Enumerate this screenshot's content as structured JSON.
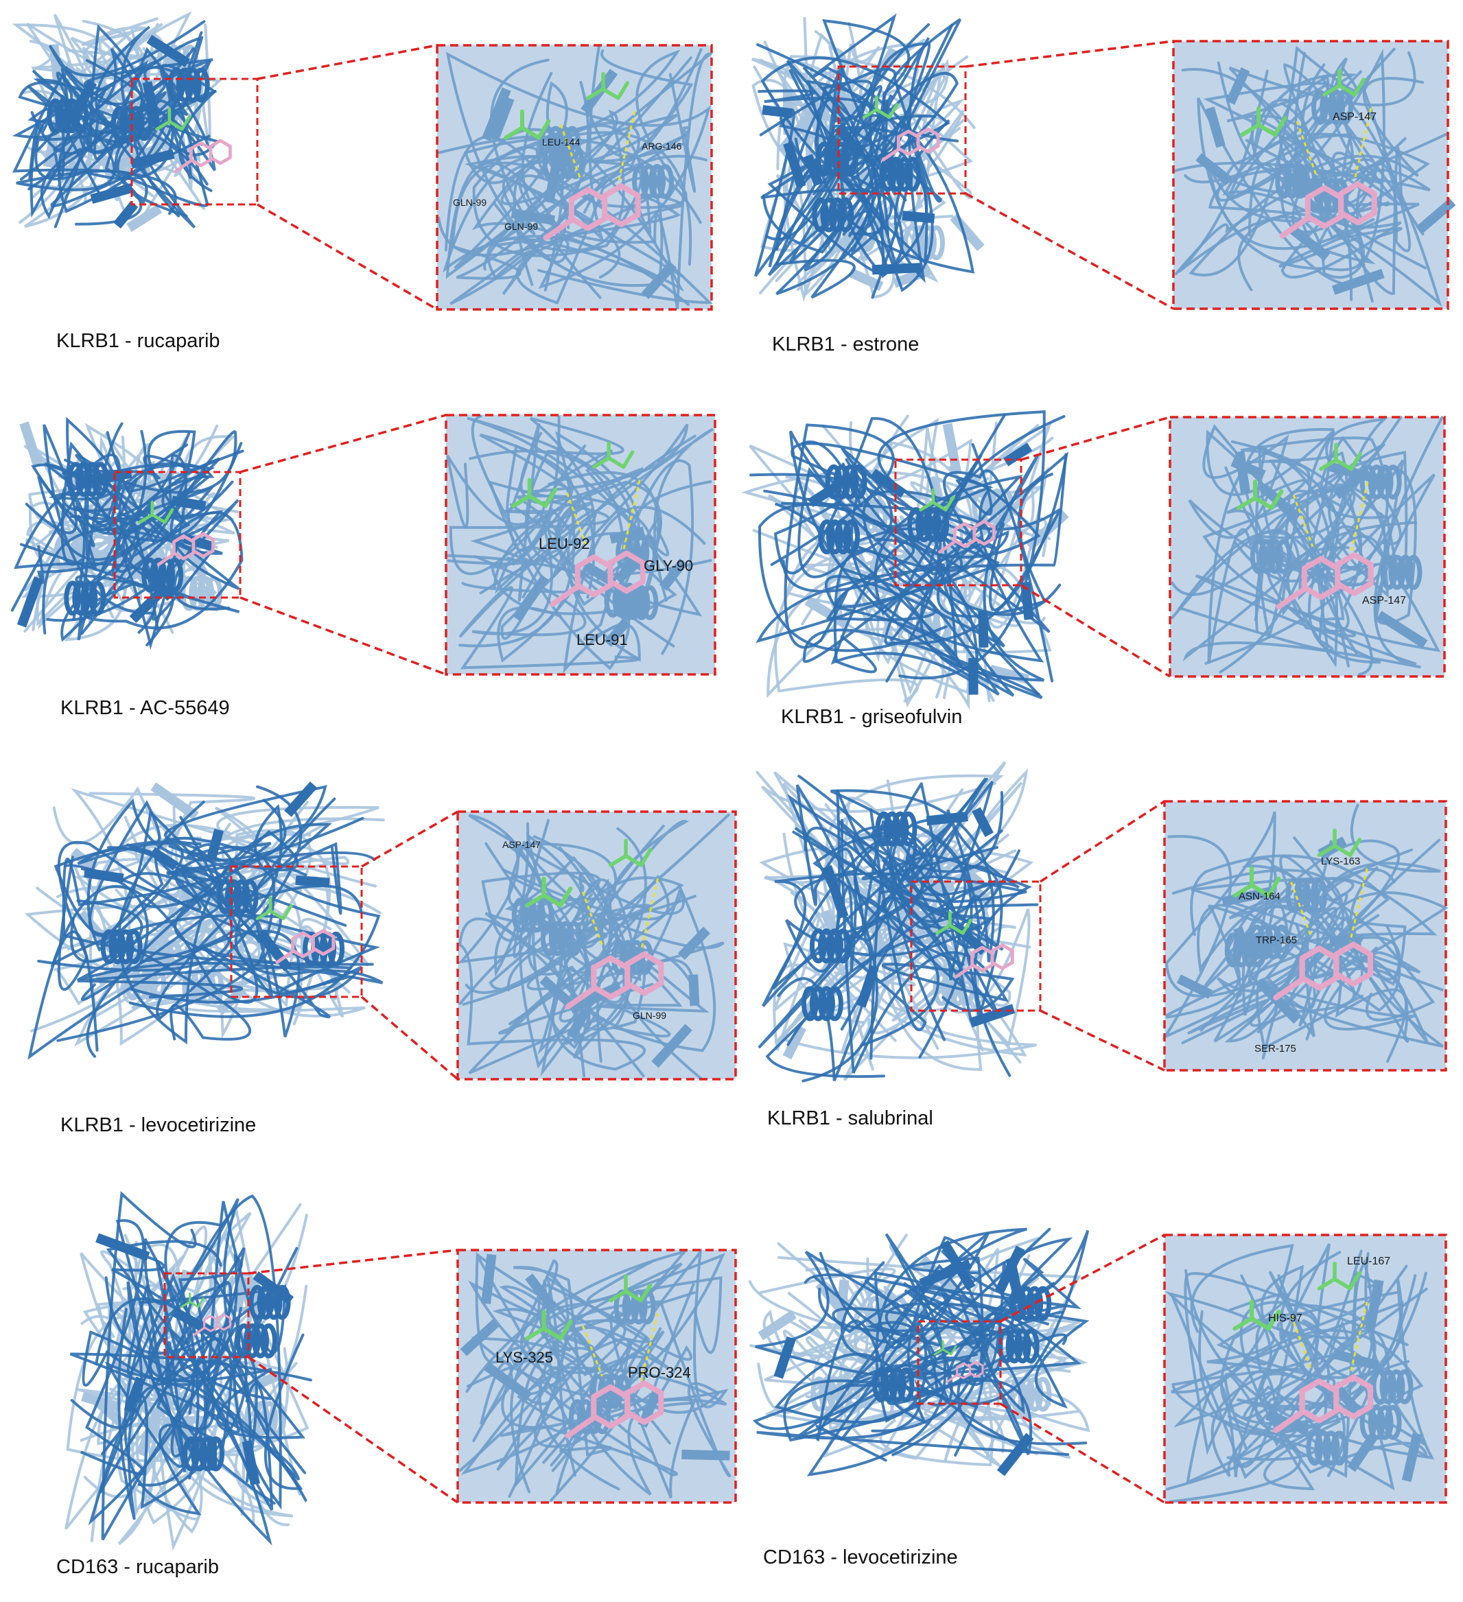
{
  "colors": {
    "protein": "#2f6fb0",
    "protein_light": "#a9c4de",
    "zoom_bg": "#8fb2d6",
    "residue": "#6fd36f",
    "ligand": "#e5a6c8",
    "hbond": "#e6e030",
    "callout": "#e02020"
  },
  "panels": [
    {
      "caption": "KLRB1 - rucaparib",
      "residues": [
        "LEU-144",
        "ARG-146",
        "GLN-99",
        "GLN-99"
      ]
    },
    {
      "caption": "KLRB1 - estrone",
      "residues": [
        "ASP-147"
      ]
    },
    {
      "caption": "KLRB1 - AC-55649",
      "residues": [
        "LEU-92",
        "GLY-90",
        "LEU-91"
      ]
    },
    {
      "caption": "KLRB1 - griseofulvin",
      "residues": [
        "ASP-147"
      ]
    },
    {
      "caption": "KLRB1 - levocetirizine",
      "residues": [
        "ASP-147",
        "GLN-99"
      ]
    },
    {
      "caption": "KLRB1 - salubrinal",
      "residues": [
        "LYS-163",
        "ASN-164",
        "TRP-165",
        "SER-175"
      ]
    },
    {
      "caption": "CD163 - rucaparib",
      "residues": [
        "LYS-325",
        "PRO-324"
      ]
    },
    {
      "caption": "CD163 - levocetirizine",
      "residues": [
        "LEU-167",
        "HIS-97"
      ]
    }
  ]
}
